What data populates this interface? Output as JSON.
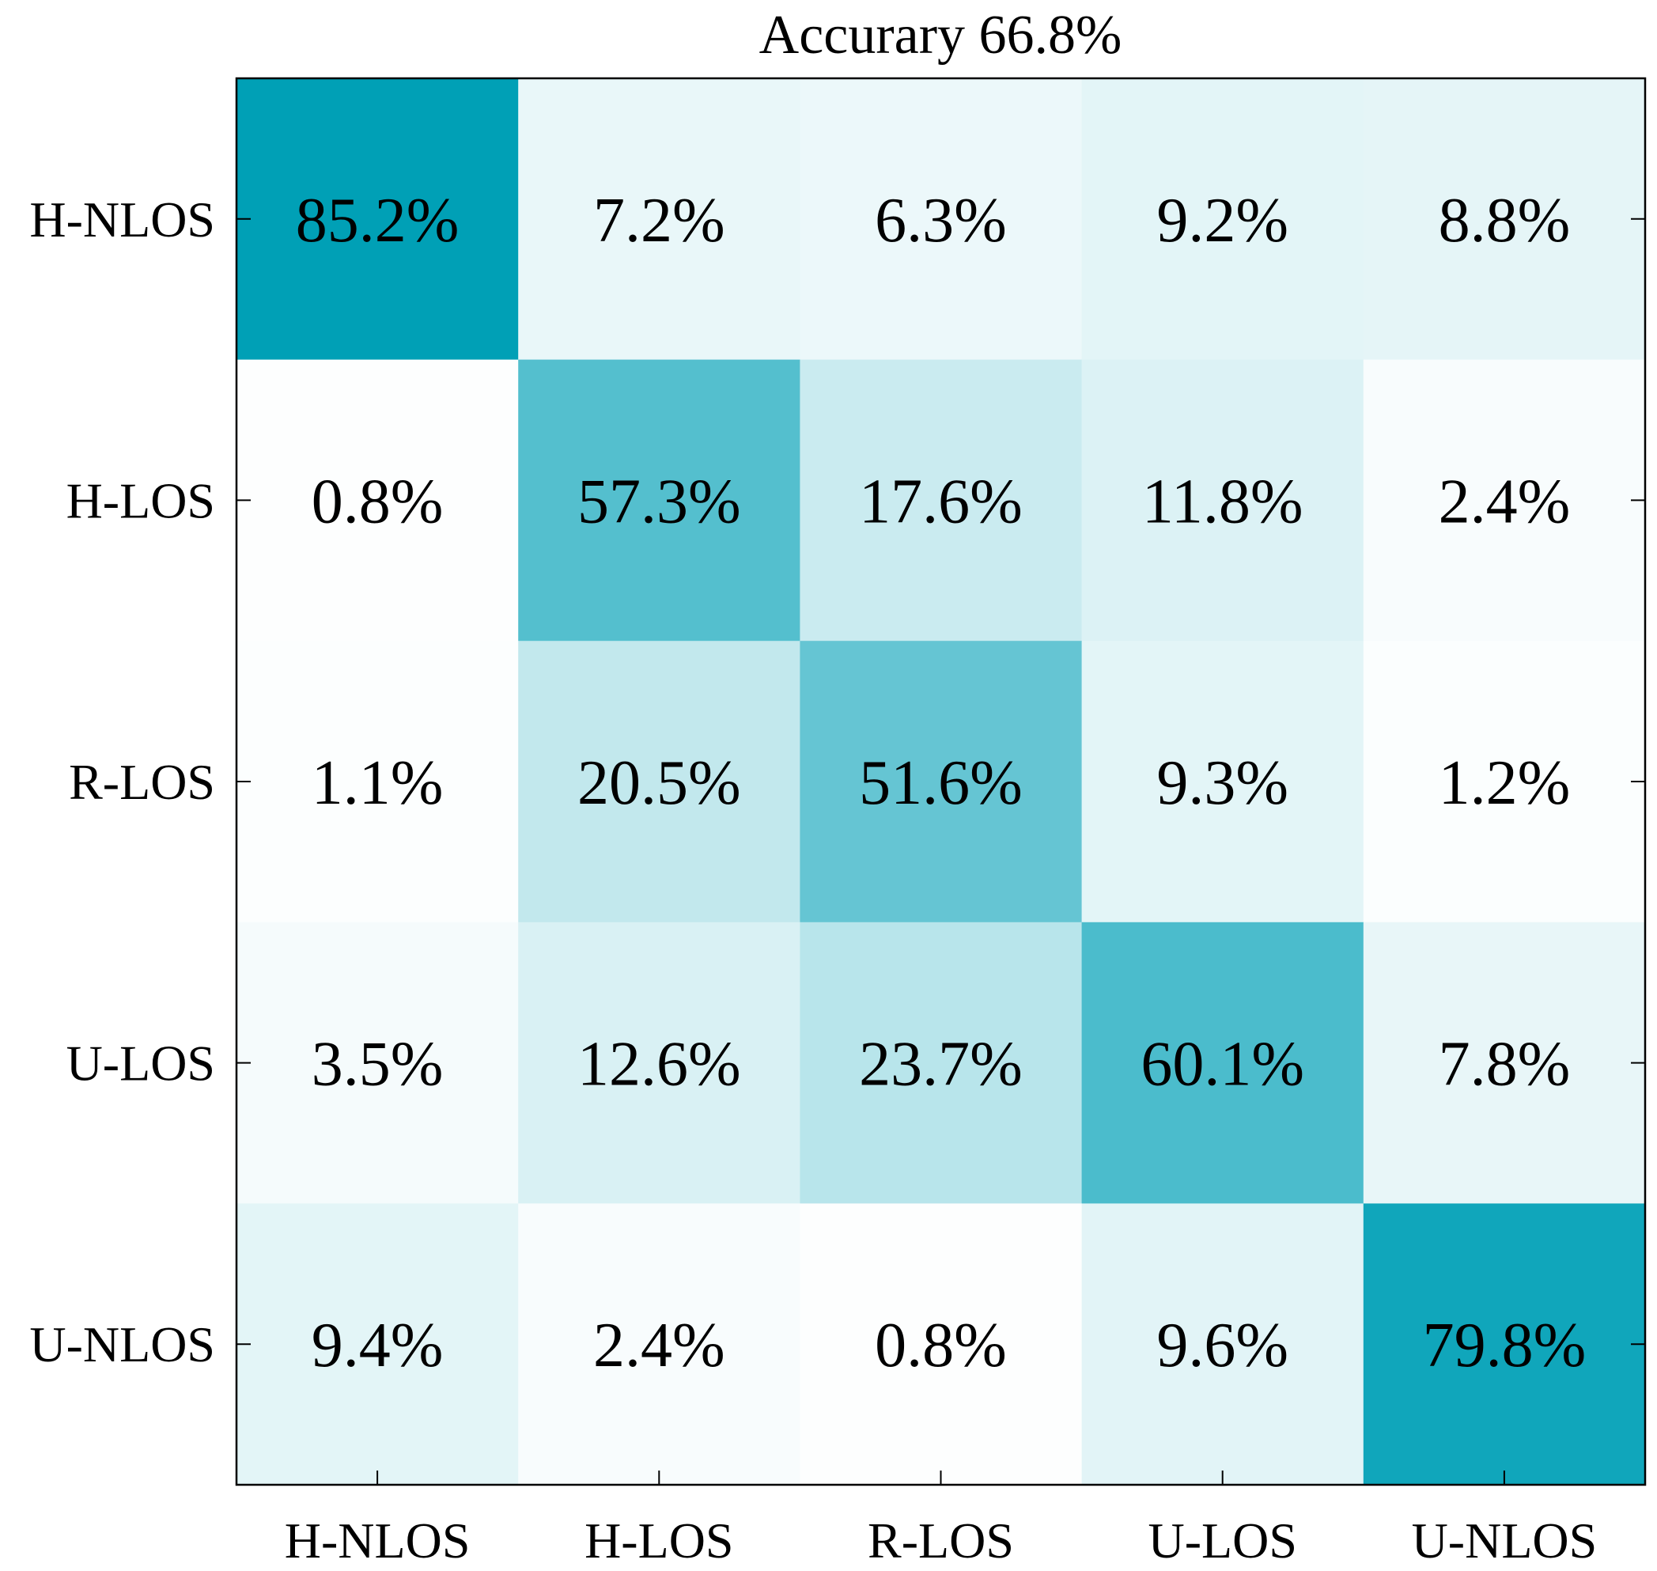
{
  "chart_data": {
    "type": "heatmap",
    "title": "Accurary 66.8%",
    "row_labels": [
      "H-NLOS",
      "H-LOS",
      "R-LOS",
      "U-LOS",
      "U-NLOS"
    ],
    "col_labels": [
      "H-NLOS",
      "H-LOS",
      "R-LOS",
      "U-LOS",
      "U-NLOS"
    ],
    "values": [
      [
        85.2,
        7.2,
        6.3,
        9.2,
        8.8
      ],
      [
        0.8,
        57.3,
        17.6,
        11.8,
        2.4
      ],
      [
        1.1,
        20.5,
        51.6,
        9.3,
        1.2
      ],
      [
        3.5,
        12.6,
        23.7,
        60.1,
        7.8
      ],
      [
        9.4,
        2.4,
        0.8,
        9.6,
        79.8
      ]
    ],
    "value_suffix": "%",
    "color_min": "#ffffff",
    "color_max": "#00a0b6",
    "color_domain": [
      0,
      85.2
    ],
    "xlabel": "",
    "ylabel": ""
  }
}
